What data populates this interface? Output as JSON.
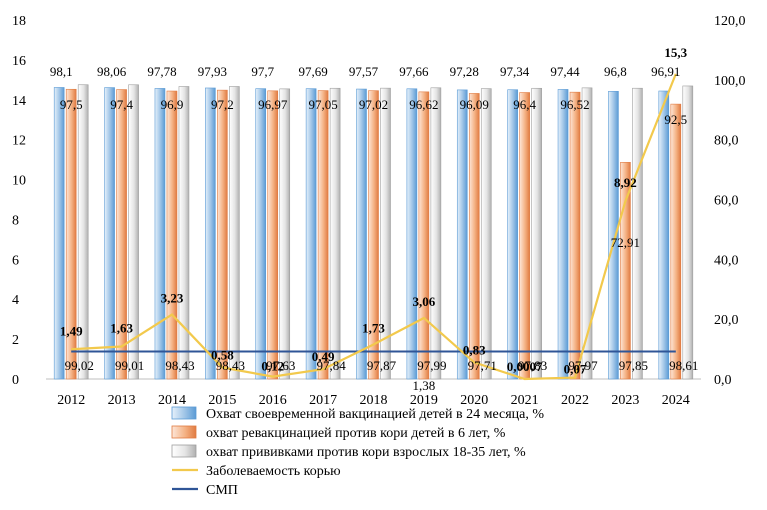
{
  "chart_data": {
    "type": "bar",
    "categories": [
      "2012",
      "2013",
      "2014",
      "2015",
      "2016",
      "2017",
      "2018",
      "2019",
      "2020",
      "2021",
      "2022",
      "2023",
      "2024"
    ],
    "left_axis": {
      "min": 0,
      "max": 18,
      "step": 2,
      "tick_labels": [
        "0",
        "2",
        "4",
        "6",
        "8",
        "10",
        "12",
        "14",
        "16",
        "18"
      ]
    },
    "right_axis": {
      "min": 0,
      "max": 120,
      "step": 20,
      "tick_labels": [
        "0,0",
        "20,0",
        "40,0",
        "60,0",
        "80,0",
        "100,0",
        "120,0"
      ]
    },
    "bar_series": [
      {
        "name": "Охват своевременной  вакцинацией детей в 24 месяца, %",
        "color": "#9dc3e6",
        "values": [
          98.1,
          98.06,
          97.78,
          97.93,
          97.7,
          97.69,
          97.57,
          97.66,
          97.28,
          97.34,
          97.44,
          96.8,
          96.91
        ],
        "labels": [
          "98,1",
          "98,06",
          "97,78",
          "97,93",
          "97,7",
          "97,69",
          "97,57",
          "97,66",
          "97,28",
          "97,34",
          "97,44",
          "96,8",
          "96,91"
        ]
      },
      {
        "name": "охват ревакцинацией против кори детей в 6 лет, %",
        "color": "#f4b183",
        "values": [
          97.5,
          97.4,
          96.9,
          97.2,
          96.97,
          97.05,
          97.02,
          96.62,
          96.09,
          96.4,
          96.52,
          72.91,
          92.5
        ],
        "labels": [
          "97,5",
          "97,4",
          "96,9",
          "97,2",
          "96,97",
          "97,05",
          "97,02",
          "96,62",
          "96,09",
          "96,4",
          "96,52",
          "72,91",
          "92,5"
        ]
      },
      {
        "name": "охват прививками против кори взрослых 18-35 лет, %",
        "color": "#d9d9d9",
        "values": [
          99.02,
          99.01,
          98.43,
          98.43,
          97.63,
          97.84,
          97.87,
          97.99,
          97.71,
          97.83,
          97.97,
          97.85,
          98.61
        ],
        "labels": [
          "99,02",
          "99,01",
          "98,43",
          "98,43",
          "97,63",
          "97,84",
          "97,87",
          "97,99",
          "97,71",
          "97,83",
          "97,97",
          "97,85",
          "98,61"
        ]
      }
    ],
    "line_series": [
      {
        "name": "Заболеваемость корью",
        "color": "#f2c94c",
        "axis": "left",
        "values": [
          1.49,
          1.63,
          3.23,
          0.58,
          0.12,
          0.49,
          1.73,
          3.06,
          0.83,
          0.0007,
          0.07,
          8.92,
          15.3
        ],
        "labels": [
          "1,49",
          "1,63",
          "3,23",
          "0,58",
          "0,12",
          "0,49",
          "1,73",
          "3,06",
          "0,83",
          "0,0007",
          "0,07",
          "8,92",
          "15,3"
        ]
      },
      {
        "name": "СМП",
        "color": "#2f5597",
        "axis": "left",
        "values": [
          1.38,
          1.38,
          1.38,
          1.38,
          1.38,
          1.38,
          1.38,
          1.38,
          1.38,
          1.38,
          1.38,
          1.38,
          1.38
        ],
        "label": "1,38"
      }
    ],
    "legend_position": "bottom"
  }
}
